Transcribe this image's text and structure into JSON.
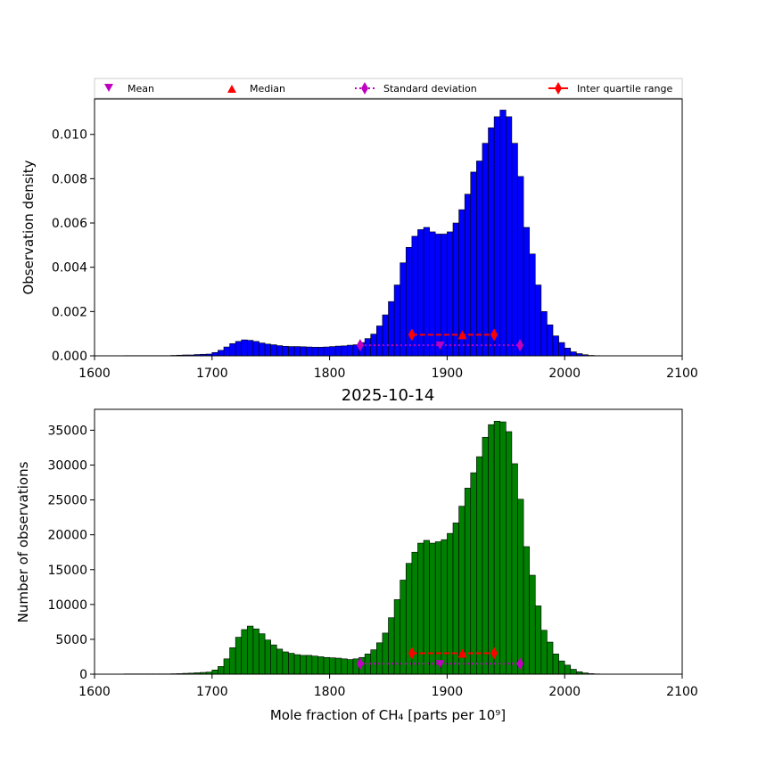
{
  "legend": {
    "mean": "Mean",
    "median": "Median",
    "std": "Standard deviation",
    "iqr": "Inter quartile range"
  },
  "colors": {
    "top_bars": "#0000ff",
    "bottom_bars": "#008000",
    "mean": "#bf00bf",
    "median": "#ff0000"
  },
  "chart_data": [
    {
      "type": "bar",
      "xlabel": "",
      "ylabel": "Observation density",
      "xlim": [
        1600,
        2100
      ],
      "ylim": [
        0,
        0.0116
      ],
      "xticks": [
        "1600",
        "1700",
        "1800",
        "1900",
        "2000",
        "2100"
      ],
      "yticks": [
        "0.000",
        "0.002",
        "0.004",
        "0.006",
        "0.008",
        "0.010"
      ],
      "bin_start": 1625,
      "bin_width": 5,
      "values": [
        1e-05,
        1e-05,
        1e-05,
        1e-05,
        1e-05,
        1e-05,
        1e-05,
        1e-05,
        2e-05,
        3e-05,
        4e-05,
        4e-05,
        6e-05,
        7e-05,
        8e-05,
        0.00015,
        0.00025,
        0.0004,
        0.00055,
        0.00065,
        0.00072,
        0.0007,
        0.00065,
        0.00058,
        0.00053,
        0.0005,
        0.00046,
        0.00043,
        0.00042,
        0.00042,
        0.00041,
        0.0004,
        0.00039,
        0.00039,
        0.0004,
        0.00042,
        0.00044,
        0.00045,
        0.00048,
        0.0005,
        0.0006,
        0.00078,
        0.00098,
        0.00135,
        0.00185,
        0.00245,
        0.0032,
        0.0042,
        0.0049,
        0.0054,
        0.0057,
        0.0058,
        0.0056,
        0.0055,
        0.0055,
        0.0056,
        0.006,
        0.0066,
        0.0073,
        0.0083,
        0.0088,
        0.0096,
        0.0103,
        0.0108,
        0.0111,
        0.0108,
        0.0096,
        0.0081,
        0.0058,
        0.0046,
        0.0032,
        0.002,
        0.0014,
        0.0009,
        0.0006,
        0.00035,
        0.00018,
        0.0001,
        5e-05,
        2e-05,
        1e-05
      ],
      "stats": {
        "mean": 1894,
        "median": 1913,
        "std": [
          1826,
          1962
        ],
        "iqr": [
          1870,
          1940
        ],
        "mean_y": 0.00048,
        "median_y": 0.00095,
        "std_y": 0.00048,
        "iqr_y": 0.00095
      }
    },
    {
      "type": "bar",
      "title": "2025-10-14",
      "xlabel": "Mole fraction of CH₄ [parts per 10⁹]",
      "ylabel": "Number of observations",
      "xlim": [
        1600,
        2100
      ],
      "ylim": [
        0,
        38000
      ],
      "xticks": [
        "1600",
        "1700",
        "1800",
        "1900",
        "2000",
        "2100"
      ],
      "yticks": [
        "0",
        "5000",
        "10000",
        "15000",
        "20000",
        "25000",
        "30000",
        "35000"
      ],
      "bin_start": 1625,
      "bin_width": 5,
      "values": [
        40,
        40,
        40,
        40,
        40,
        40,
        40,
        40,
        60,
        80,
        120,
        150,
        200,
        250,
        300,
        600,
        1100,
        2200,
        3800,
        5300,
        6400,
        6900,
        6500,
        5800,
        4900,
        4200,
        3600,
        3200,
        3000,
        2800,
        2700,
        2700,
        2600,
        2500,
        2400,
        2350,
        2300,
        2200,
        2100,
        2200,
        2400,
        2900,
        3500,
        4500,
        5900,
        8100,
        10700,
        13500,
        15900,
        17500,
        18800,
        19200,
        18800,
        19000,
        19300,
        20200,
        21700,
        24100,
        26700,
        28900,
        31200,
        34000,
        35800,
        36300,
        36200,
        34800,
        30200,
        25100,
        18300,
        14200,
        9800,
        6300,
        4600,
        2900,
        1900,
        1300,
        700,
        350,
        180,
        80,
        40
      ],
      "stats": {
        "mean": 1894,
        "median": 1913,
        "std": [
          1826,
          1962
        ],
        "iqr": [
          1870,
          1940
        ],
        "mean_y": 1500,
        "median_y": 3000,
        "std_y": 1500,
        "iqr_y": 3000
      }
    }
  ]
}
